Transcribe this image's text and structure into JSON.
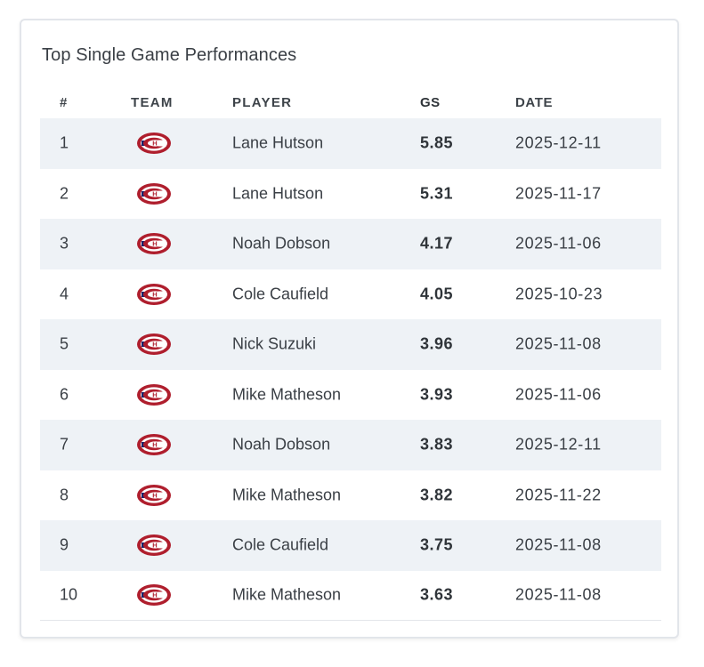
{
  "card": {
    "title": "Top Single Game Performances"
  },
  "table": {
    "headers": {
      "rank": "#",
      "team": "TEAM",
      "player": "PLAYER",
      "gs": "GS",
      "date": "DATE"
    },
    "rows": [
      {
        "rank": "1",
        "team_icon": "montreal-canadiens-logo-icon",
        "player": "Lane Hutson",
        "gs": "5.85",
        "date": "2025-12-11"
      },
      {
        "rank": "2",
        "team_icon": "montreal-canadiens-logo-icon",
        "player": "Lane Hutson",
        "gs": "5.31",
        "date": "2025-11-17"
      },
      {
        "rank": "3",
        "team_icon": "montreal-canadiens-logo-icon",
        "player": "Noah Dobson",
        "gs": "4.17",
        "date": "2025-11-06"
      },
      {
        "rank": "4",
        "team_icon": "montreal-canadiens-logo-icon",
        "player": "Cole Caufield",
        "gs": "4.05",
        "date": "2025-10-23"
      },
      {
        "rank": "5",
        "team_icon": "montreal-canadiens-logo-icon",
        "player": "Nick Suzuki",
        "gs": "3.96",
        "date": "2025-11-08"
      },
      {
        "rank": "6",
        "team_icon": "montreal-canadiens-logo-icon",
        "player": "Mike Matheson",
        "gs": "3.93",
        "date": "2025-11-06"
      },
      {
        "rank": "7",
        "team_icon": "montreal-canadiens-logo-icon",
        "player": "Noah Dobson",
        "gs": "3.83",
        "date": "2025-12-11"
      },
      {
        "rank": "8",
        "team_icon": "montreal-canadiens-logo-icon",
        "player": "Mike Matheson",
        "gs": "3.82",
        "date": "2025-11-22"
      },
      {
        "rank": "9",
        "team_icon": "montreal-canadiens-logo-icon",
        "player": "Cole Caufield",
        "gs": "3.75",
        "date": "2025-11-08"
      },
      {
        "rank": "10",
        "team_icon": "montreal-canadiens-logo-icon",
        "player": "Mike Matheson",
        "gs": "3.63",
        "date": "2025-11-08"
      }
    ]
  },
  "colors": {
    "logo_red": "#af1e2d",
    "logo_blue": "#192168",
    "row_stripe": "#eef2f6",
    "text": "#3a3f45"
  }
}
